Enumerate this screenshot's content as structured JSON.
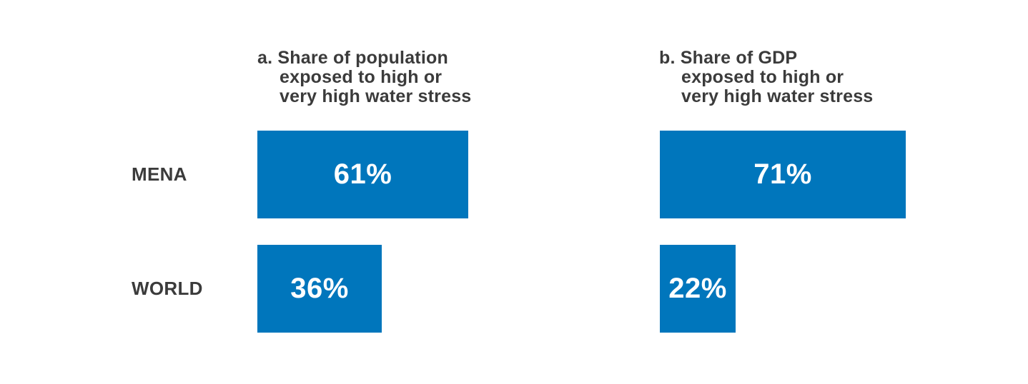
{
  "chart_data": [
    {
      "type": "bar",
      "orientation": "horizontal",
      "title": "a. Share of population exposed to high or very high water stress",
      "title_lines": [
        "a. Share of population",
        "exposed to high or",
        "very high water stress"
      ],
      "categories": [
        "MENA",
        "WORLD"
      ],
      "values": [
        61,
        36
      ],
      "value_labels": [
        "61%",
        "36%"
      ],
      "xlim": [
        0,
        100
      ],
      "grid": false,
      "legend": "none",
      "bar_color": "#0076BC",
      "value_label_color": "#FFFFFF"
    },
    {
      "type": "bar",
      "orientation": "horizontal",
      "title": "b. Share of GDP exposed to high or very high water stress",
      "title_lines": [
        "b. Share of GDP",
        "exposed to high or",
        "very high water stress"
      ],
      "categories": [
        "MENA",
        "WORLD"
      ],
      "values": [
        71,
        22
      ],
      "value_labels": [
        "71%",
        "22%"
      ],
      "xlim": [
        0,
        100
      ],
      "grid": false,
      "legend": "none",
      "bar_color": "#0076BC",
      "value_label_color": "#FFFFFF"
    }
  ],
  "colors": {
    "bar": "#0076BC",
    "text": "#3B3B3B",
    "value_text": "#FFFFFF",
    "background": "#FFFFFF"
  }
}
